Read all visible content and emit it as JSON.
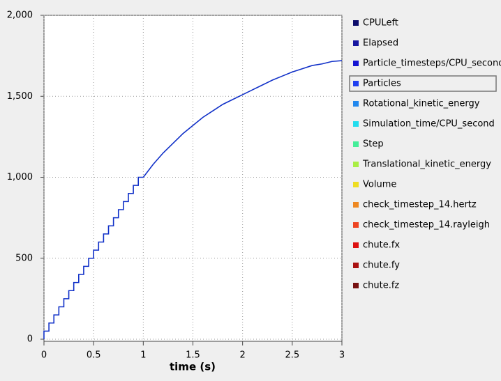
{
  "chart_data": {
    "type": "line",
    "xlabel": "time (s)",
    "x": [
      0,
      0,
      0.05,
      0.05,
      0.1,
      0.1,
      0.15,
      0.15,
      0.2,
      0.2,
      0.25,
      0.25,
      0.3,
      0.3,
      0.35,
      0.35,
      0.4,
      0.4,
      0.45,
      0.45,
      0.5,
      0.5,
      0.55,
      0.55,
      0.6,
      0.6,
      0.65,
      0.65,
      0.7,
      0.7,
      0.75,
      0.75,
      0.8,
      0.8,
      0.85,
      0.85,
      0.9,
      0.9,
      0.95,
      0.95,
      1.0,
      1.1,
      1.2,
      1.3,
      1.4,
      1.5,
      1.6,
      1.7,
      1.8,
      1.9,
      2.0,
      2.1,
      2.2,
      2.3,
      2.4,
      2.5,
      2.6,
      2.7,
      2.8,
      2.9,
      3.0
    ],
    "values": [
      0,
      50,
      50,
      100,
      100,
      150,
      150,
      200,
      200,
      250,
      250,
      300,
      300,
      350,
      350,
      400,
      400,
      450,
      450,
      500,
      500,
      550,
      550,
      600,
      600,
      650,
      650,
      700,
      700,
      750,
      750,
      800,
      800,
      850,
      850,
      900,
      900,
      950,
      950,
      1000,
      1000,
      1080,
      1150,
      1210,
      1270,
      1320,
      1370,
      1410,
      1450,
      1480,
      1510,
      1540,
      1570,
      1600,
      1625,
      1650,
      1670,
      1690,
      1700,
      1715,
      1720
    ],
    "color": "#1030c8",
    "xlim": [
      0,
      3
    ],
    "ylim": [
      0,
      2000
    ],
    "xticks": [
      0,
      0.5,
      1,
      1.5,
      2,
      2.5,
      3
    ],
    "yticks": [
      0,
      500,
      {
        "value": 1000,
        "label": "1,000"
      },
      {
        "value": 1500,
        "label": "1,500"
      },
      {
        "value": 2000,
        "label": "2,000"
      }
    ],
    "grid": true,
    "legend_items": [
      {
        "name": "CPULeft",
        "color": "#0c0c6b"
      },
      {
        "name": "Elapsed",
        "color": "#1616a0"
      },
      {
        "name": "Particle_timesteps/CPU_second",
        "color": "#1414d2"
      },
      {
        "name": "Particles",
        "color": "#2040f0",
        "selected": true
      },
      {
        "name": "Rotational_kinetic_energy",
        "color": "#2288ee"
      },
      {
        "name": "Simulation_time/CPU_second",
        "color": "#22ddee"
      },
      {
        "name": "Step",
        "color": "#44ee99"
      },
      {
        "name": "Translational_kinetic_energy",
        "color": "#aaee44"
      },
      {
        "name": "Volume",
        "color": "#eedd22"
      },
      {
        "name": "check_timestep_14.hertz",
        "color": "#ee8822"
      },
      {
        "name": "check_timestep_14.rayleigh",
        "color": "#ee4422"
      },
      {
        "name": "chute.fx",
        "color": "#dd1111"
      },
      {
        "name": "chute.fy",
        "color": "#aa1111"
      },
      {
        "name": "chute.fz",
        "color": "#771111"
      }
    ]
  }
}
